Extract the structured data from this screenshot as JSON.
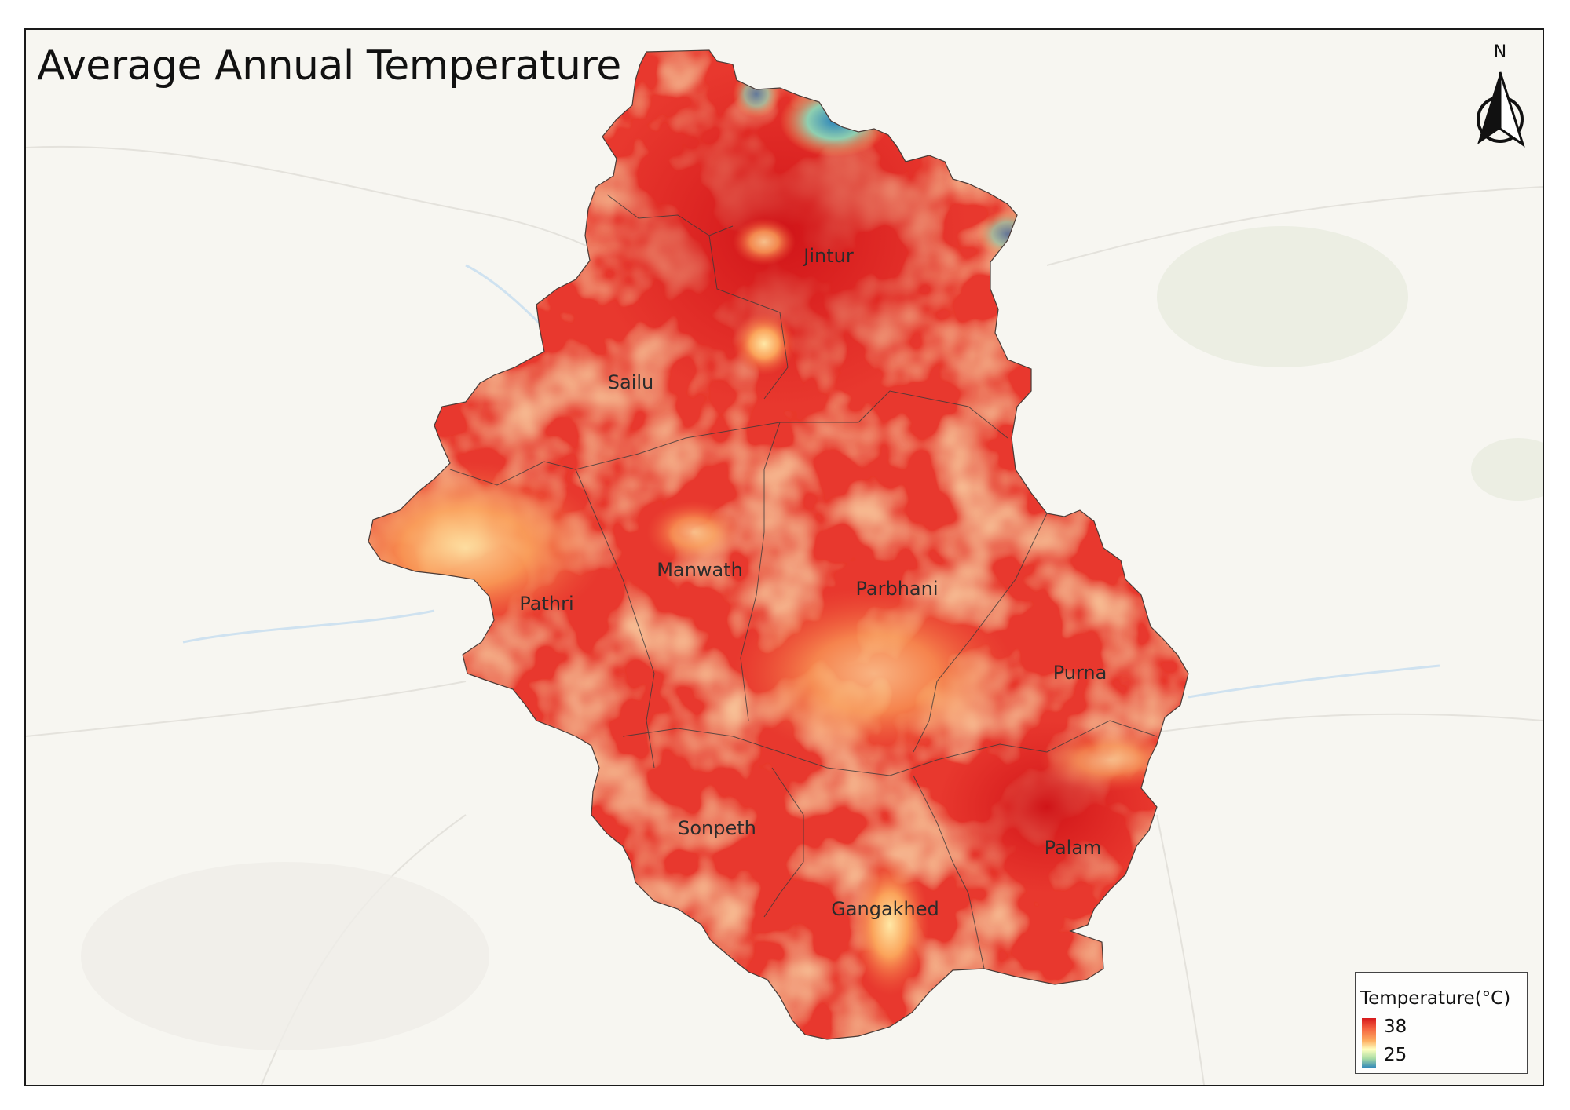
{
  "map": {
    "title": "Average Annual Temperature",
    "north_label": "N",
    "talukas": [
      {
        "name": "Jintur"
      },
      {
        "name": "Sailu"
      },
      {
        "name": "Manwath"
      },
      {
        "name": "Pathri"
      },
      {
        "name": "Parbhani"
      },
      {
        "name": "Purna"
      },
      {
        "name": "Sonpeth"
      },
      {
        "name": "Palam"
      },
      {
        "name": "Gangakhed"
      }
    ]
  },
  "legend": {
    "title": "Temperature(°C)",
    "max_label": "38",
    "min_label": "25",
    "color_ramp": [
      "#d7191c",
      "#f4603f",
      "#fdae61",
      "#ffffbf",
      "#abdda4",
      "#2b83ba"
    ]
  },
  "colors": {
    "hot": "#d7191c",
    "warm": "#ef5a3c",
    "mild": "#f9a55d",
    "cool": "#ffffbf",
    "cold": "#2b83ba",
    "basemap": "#f7f6f1",
    "boundary": "#3a3a3a"
  }
}
